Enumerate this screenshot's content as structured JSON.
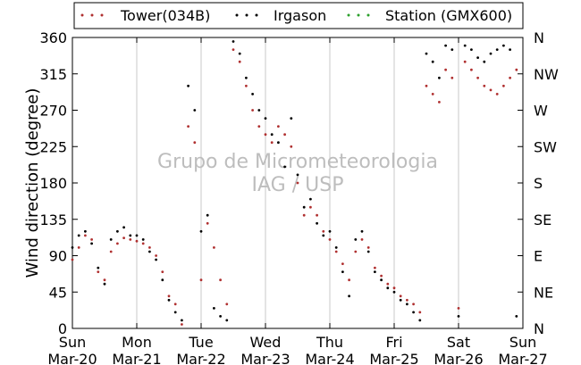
{
  "chart_data": {
    "type": "scatter",
    "title": "",
    "ylabel": "Wind direction (degree)",
    "ylim": [
      0,
      360
    ],
    "y_ticks": [
      "0",
      "45",
      "90",
      "135",
      "180",
      "225",
      "270",
      "315",
      "360"
    ],
    "y_right_ticks": [
      {
        "value": 0,
        "label": "N"
      },
      {
        "value": 45,
        "label": "NE"
      },
      {
        "value": 90,
        "label": "E"
      },
      {
        "value": 135,
        "label": "SE"
      },
      {
        "value": 180,
        "label": "S"
      },
      {
        "value": 225,
        "label": "SW"
      },
      {
        "value": 270,
        "label": "W"
      },
      {
        "value": 315,
        "label": "NW"
      },
      {
        "value": 360,
        "label": "N"
      }
    ],
    "x_ticks": [
      {
        "day": "Sun",
        "date": "Mar-20"
      },
      {
        "day": "Mon",
        "date": "Mar-21"
      },
      {
        "day": "Tue",
        "date": "Mar-22"
      },
      {
        "day": "Wed",
        "date": "Mar-23"
      },
      {
        "day": "Thu",
        "date": "Mar-24"
      },
      {
        "day": "Fri",
        "date": "Mar-25"
      },
      {
        "day": "Sat",
        "date": "Mar-26"
      },
      {
        "day": "Sun",
        "date": "Mar-27"
      }
    ],
    "grid": "vertical",
    "legend_position": "top",
    "watermark": [
      "Grupo de Micrometeorologia",
      "IAG / USP"
    ],
    "series": [
      {
        "name": "Tower(034B)",
        "color": "#b03030",
        "points": [
          [
            0.0,
            85
          ],
          [
            0.1,
            100
          ],
          [
            0.2,
            115
          ],
          [
            0.3,
            110
          ],
          [
            0.4,
            70
          ],
          [
            0.5,
            60
          ],
          [
            0.6,
            95
          ],
          [
            0.7,
            105
          ],
          [
            0.8,
            112
          ],
          [
            0.9,
            110
          ],
          [
            1.0,
            108
          ],
          [
            1.1,
            105
          ],
          [
            1.2,
            100
          ],
          [
            1.3,
            90
          ],
          [
            1.4,
            70
          ],
          [
            1.5,
            40
          ],
          [
            1.6,
            30
          ],
          [
            1.7,
            5
          ],
          [
            1.8,
            250
          ],
          [
            1.9,
            230
          ],
          [
            2.0,
            60
          ],
          [
            2.1,
            130
          ],
          [
            2.2,
            100
          ],
          [
            2.3,
            60
          ],
          [
            2.4,
            30
          ],
          [
            2.5,
            345
          ],
          [
            2.6,
            330
          ],
          [
            2.7,
            300
          ],
          [
            2.8,
            270
          ],
          [
            2.9,
            250
          ],
          [
            3.0,
            240
          ],
          [
            3.1,
            230
          ],
          [
            3.2,
            250
          ],
          [
            3.3,
            240
          ],
          [
            3.4,
            225
          ],
          [
            3.5,
            180
          ],
          [
            3.6,
            140
          ],
          [
            3.7,
            150
          ],
          [
            3.8,
            140
          ],
          [
            3.9,
            120
          ],
          [
            4.0,
            110
          ],
          [
            4.1,
            95
          ],
          [
            4.2,
            80
          ],
          [
            4.3,
            60
          ],
          [
            4.4,
            95
          ],
          [
            4.5,
            110
          ],
          [
            4.6,
            100
          ],
          [
            4.7,
            75
          ],
          [
            4.8,
            65
          ],
          [
            4.9,
            55
          ],
          [
            5.0,
            50
          ],
          [
            5.1,
            40
          ],
          [
            5.2,
            35
          ],
          [
            5.3,
            30
          ],
          [
            5.4,
            20
          ],
          [
            5.5,
            300
          ],
          [
            5.6,
            290
          ],
          [
            5.7,
            280
          ],
          [
            5.8,
            320
          ],
          [
            5.9,
            310
          ],
          [
            6.0,
            25
          ],
          [
            6.1,
            330
          ],
          [
            6.2,
            320
          ],
          [
            6.3,
            310
          ],
          [
            6.4,
            300
          ],
          [
            6.5,
            295
          ],
          [
            6.6,
            290
          ],
          [
            6.7,
            300
          ],
          [
            6.8,
            310
          ],
          [
            6.9,
            320
          ]
        ]
      },
      {
        "name": "Irgason",
        "color": "#000000",
        "points": [
          [
            0.0,
            100
          ],
          [
            0.1,
            115
          ],
          [
            0.2,
            120
          ],
          [
            0.3,
            105
          ],
          [
            0.4,
            75
          ],
          [
            0.5,
            55
          ],
          [
            0.6,
            110
          ],
          [
            0.7,
            120
          ],
          [
            0.8,
            125
          ],
          [
            0.9,
            115
          ],
          [
            1.0,
            115
          ],
          [
            1.1,
            110
          ],
          [
            1.2,
            95
          ],
          [
            1.3,
            85
          ],
          [
            1.4,
            60
          ],
          [
            1.5,
            35
          ],
          [
            1.6,
            20
          ],
          [
            1.7,
            10
          ],
          [
            1.8,
            300
          ],
          [
            1.9,
            270
          ],
          [
            2.0,
            120
          ],
          [
            2.1,
            140
          ],
          [
            2.2,
            25
          ],
          [
            2.3,
            15
          ],
          [
            2.4,
            10
          ],
          [
            2.5,
            355
          ],
          [
            2.6,
            340
          ],
          [
            2.7,
            310
          ],
          [
            2.8,
            290
          ],
          [
            2.9,
            270
          ],
          [
            3.0,
            260
          ],
          [
            3.1,
            240
          ],
          [
            3.2,
            230
          ],
          [
            3.3,
            200
          ],
          [
            3.4,
            260
          ],
          [
            3.5,
            190
          ],
          [
            3.6,
            150
          ],
          [
            3.7,
            160
          ],
          [
            3.8,
            130
          ],
          [
            3.9,
            115
          ],
          [
            4.0,
            120
          ],
          [
            4.1,
            100
          ],
          [
            4.2,
            70
          ],
          [
            4.3,
            40
          ],
          [
            4.4,
            110
          ],
          [
            4.5,
            120
          ],
          [
            4.6,
            95
          ],
          [
            4.7,
            70
          ],
          [
            4.8,
            60
          ],
          [
            4.9,
            50
          ],
          [
            5.0,
            45
          ],
          [
            5.1,
            35
          ],
          [
            5.2,
            30
          ],
          [
            5.3,
            20
          ],
          [
            5.4,
            10
          ],
          [
            5.5,
            340
          ],
          [
            5.6,
            330
          ],
          [
            5.7,
            310
          ],
          [
            5.8,
            350
          ],
          [
            5.9,
            345
          ],
          [
            6.0,
            15
          ],
          [
            6.1,
            350
          ],
          [
            6.2,
            345
          ],
          [
            6.3,
            335
          ],
          [
            6.4,
            330
          ],
          [
            6.5,
            340
          ],
          [
            6.6,
            345
          ],
          [
            6.7,
            350
          ],
          [
            6.8,
            345
          ],
          [
            6.9,
            15
          ]
        ]
      },
      {
        "name": "Station (GMX600)",
        "color": "#2ca02c",
        "points": []
      }
    ]
  }
}
